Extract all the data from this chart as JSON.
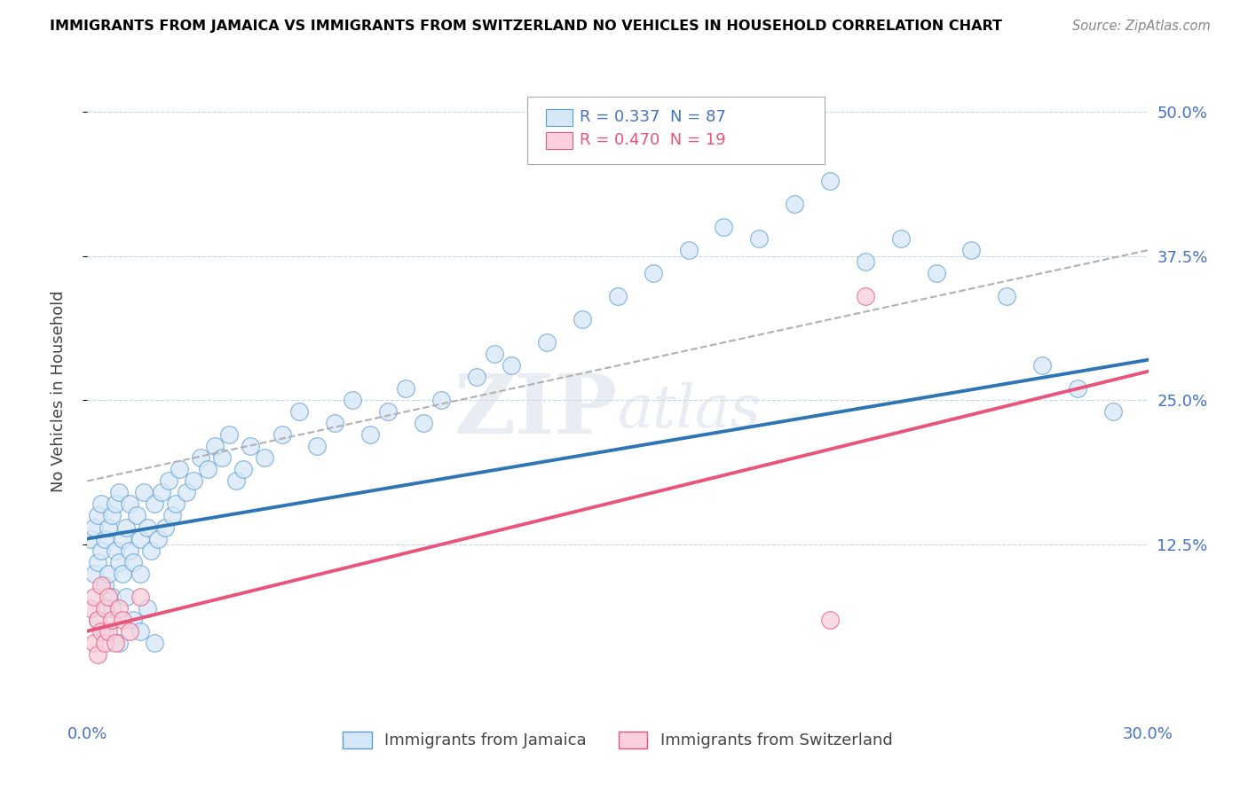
{
  "title": "IMMIGRANTS FROM JAMAICA VS IMMIGRANTS FROM SWITZERLAND NO VEHICLES IN HOUSEHOLD CORRELATION CHART",
  "source": "Source: ZipAtlas.com",
  "ylabel": "No Vehicles in Household",
  "right_ytick_labels": [
    "12.5%",
    "25.0%",
    "37.5%",
    "50.0%"
  ],
  "right_ytick_values": [
    0.125,
    0.25,
    0.375,
    0.5
  ],
  "xlim": [
    0.0,
    0.3
  ],
  "ylim": [
    -0.02,
    0.535
  ],
  "legend_label1": "Immigrants from Jamaica",
  "legend_label2": "Immigrants from Switzerland",
  "color_jamaica_fill": "#d6e8f7",
  "color_jamaica_edge": "#5b9bd5",
  "color_switzerland_fill": "#f9d0dc",
  "color_switzerland_edge": "#e8547a",
  "color_line_jamaica": "#2e75b6",
  "color_line_switzerland": "#e8547a",
  "color_dashed": "#b0b0b0",
  "watermark_color": "#d0dce8",
  "jamaica_line_x0": 0.0,
  "jamaica_line_y0": 0.13,
  "jamaica_line_x1": 0.3,
  "jamaica_line_y1": 0.285,
  "switzerland_line_x0": 0.0,
  "switzerland_line_y0": 0.05,
  "switzerland_line_x1": 0.3,
  "switzerland_line_y1": 0.275,
  "dashed_line_x0": 0.0,
  "dashed_line_y0": 0.18,
  "dashed_line_x1": 0.3,
  "dashed_line_y1": 0.38,
  "jamaica_pts_x": [
    0.001,
    0.002,
    0.002,
    0.003,
    0.003,
    0.004,
    0.004,
    0.005,
    0.005,
    0.006,
    0.006,
    0.007,
    0.007,
    0.008,
    0.008,
    0.009,
    0.009,
    0.01,
    0.01,
    0.011,
    0.012,
    0.012,
    0.013,
    0.014,
    0.015,
    0.015,
    0.016,
    0.017,
    0.018,
    0.019,
    0.02,
    0.021,
    0.022,
    0.023,
    0.024,
    0.025,
    0.026,
    0.028,
    0.03,
    0.032,
    0.034,
    0.036,
    0.038,
    0.04,
    0.042,
    0.044,
    0.046,
    0.05,
    0.055,
    0.06,
    0.065,
    0.07,
    0.075,
    0.08,
    0.085,
    0.09,
    0.095,
    0.1,
    0.11,
    0.115,
    0.12,
    0.13,
    0.14,
    0.15,
    0.16,
    0.17,
    0.18,
    0.19,
    0.2,
    0.21,
    0.22,
    0.23,
    0.24,
    0.25,
    0.26,
    0.27,
    0.28,
    0.29,
    0.003,
    0.005,
    0.007,
    0.009,
    0.011,
    0.013,
    0.015,
    0.017,
    0.019
  ],
  "jamaica_pts_y": [
    0.13,
    0.14,
    0.1,
    0.15,
    0.11,
    0.16,
    0.12,
    0.13,
    0.09,
    0.14,
    0.1,
    0.15,
    0.08,
    0.12,
    0.16,
    0.11,
    0.17,
    0.13,
    0.1,
    0.14,
    0.12,
    0.16,
    0.11,
    0.15,
    0.13,
    0.1,
    0.17,
    0.14,
    0.12,
    0.16,
    0.13,
    0.17,
    0.14,
    0.18,
    0.15,
    0.16,
    0.19,
    0.17,
    0.18,
    0.2,
    0.19,
    0.21,
    0.2,
    0.22,
    0.18,
    0.19,
    0.21,
    0.2,
    0.22,
    0.24,
    0.21,
    0.23,
    0.25,
    0.22,
    0.24,
    0.26,
    0.23,
    0.25,
    0.27,
    0.29,
    0.28,
    0.3,
    0.32,
    0.34,
    0.36,
    0.38,
    0.4,
    0.39,
    0.42,
    0.44,
    0.37,
    0.39,
    0.36,
    0.38,
    0.34,
    0.28,
    0.26,
    0.24,
    0.06,
    0.05,
    0.07,
    0.04,
    0.08,
    0.06,
    0.05,
    0.07,
    0.04
  ],
  "switzerland_pts_x": [
    0.001,
    0.002,
    0.002,
    0.003,
    0.003,
    0.004,
    0.004,
    0.005,
    0.005,
    0.006,
    0.006,
    0.007,
    0.008,
    0.009,
    0.01,
    0.012,
    0.015,
    0.21,
    0.22
  ],
  "switzerland_pts_y": [
    0.07,
    0.08,
    0.04,
    0.06,
    0.03,
    0.05,
    0.09,
    0.04,
    0.07,
    0.05,
    0.08,
    0.06,
    0.04,
    0.07,
    0.06,
    0.05,
    0.08,
    0.06,
    0.34
  ]
}
